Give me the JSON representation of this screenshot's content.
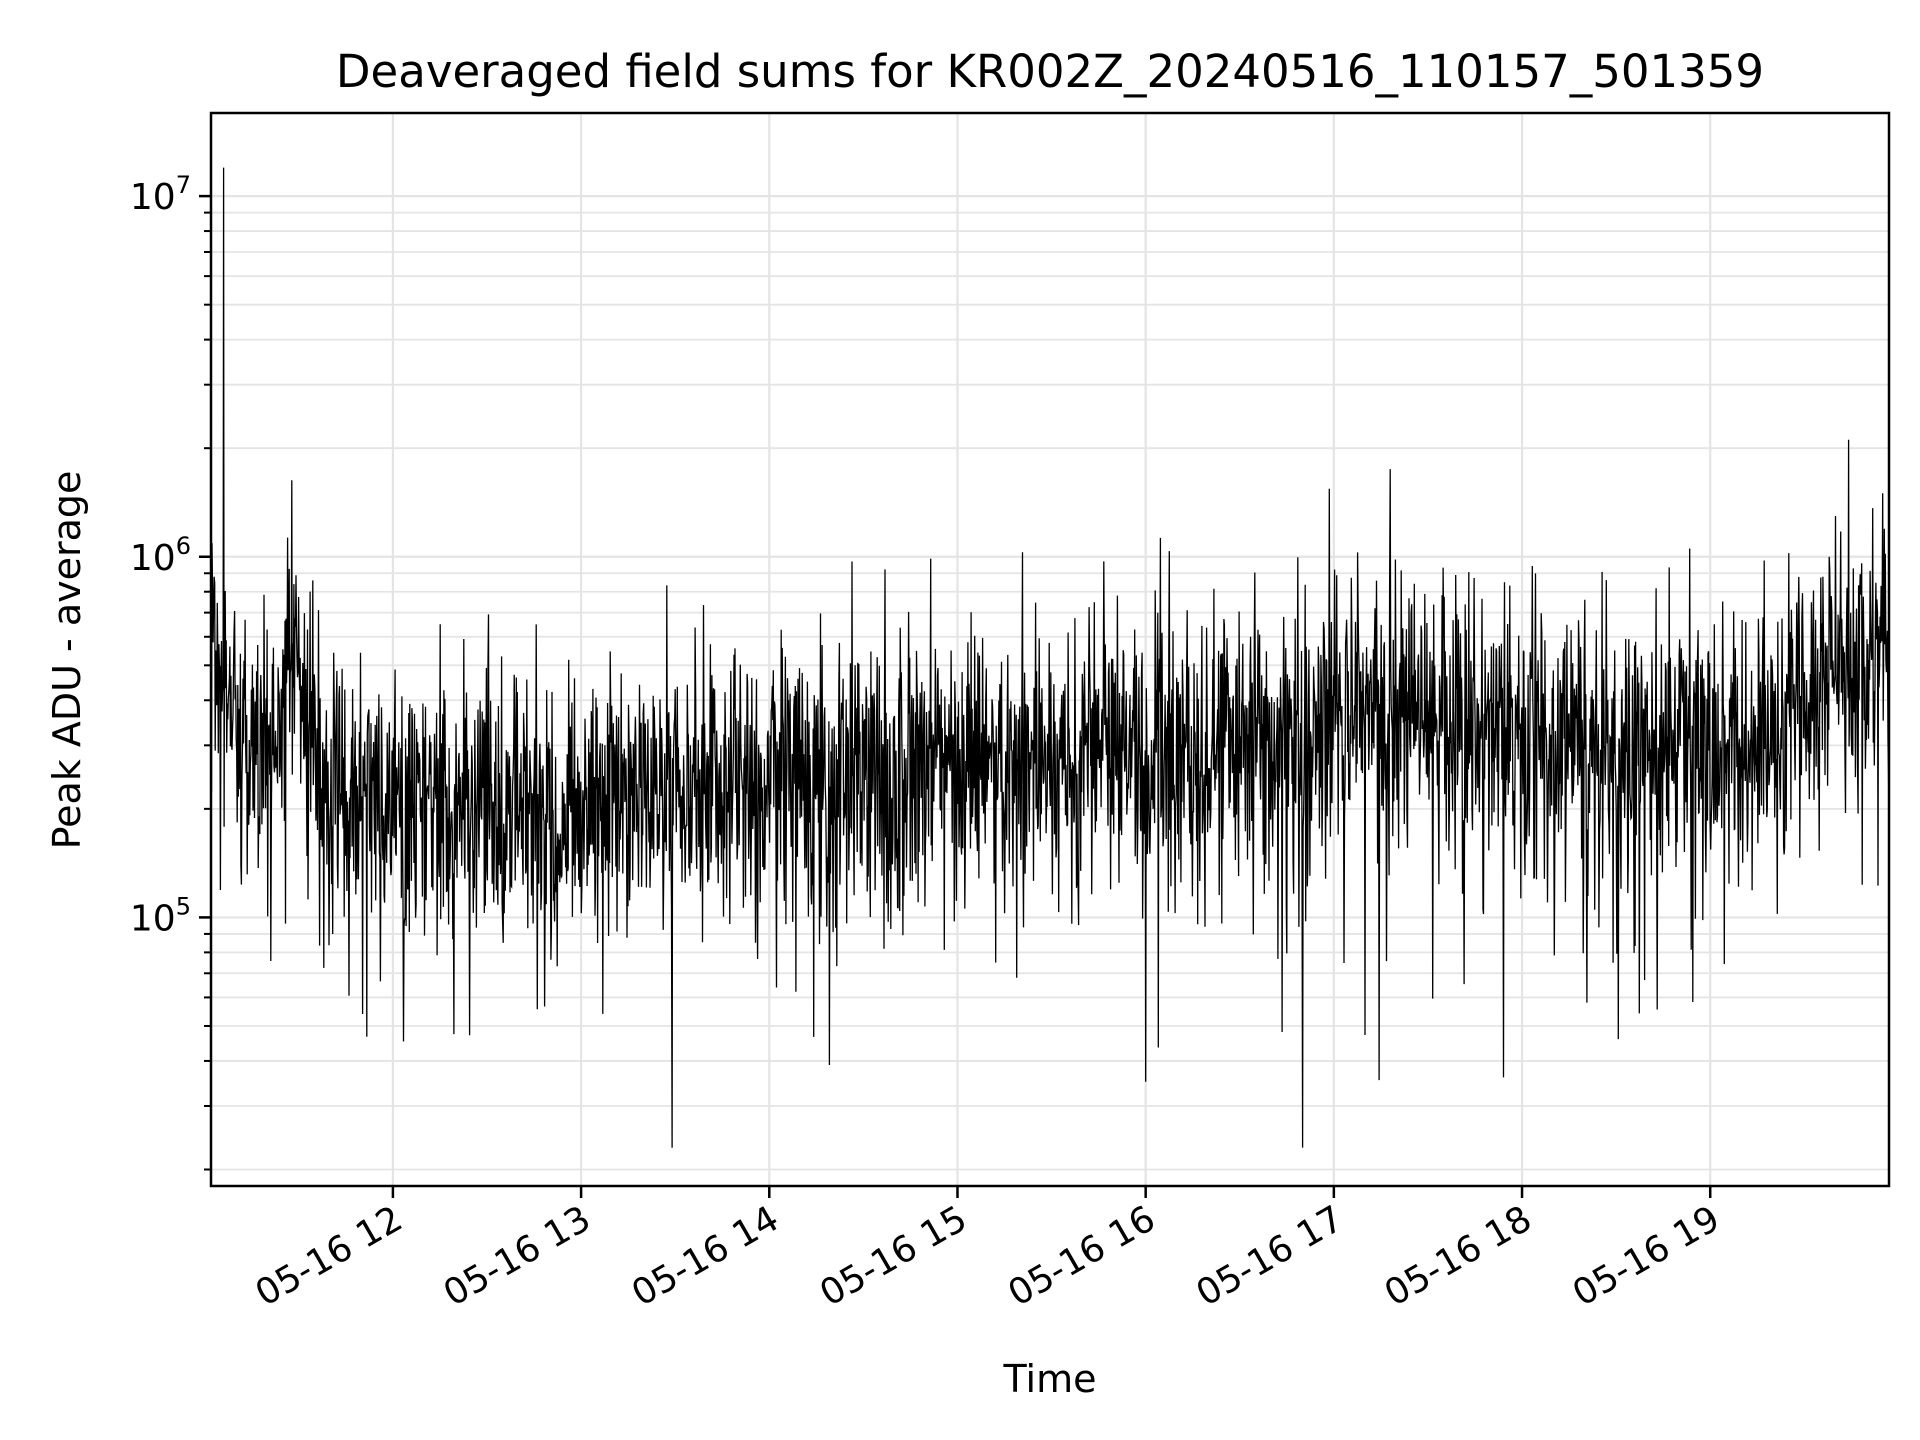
{
  "chart_data": {
    "type": "line",
    "title": "Deaveraged field sums for KR002Z_20240516_110157_501359",
    "xlabel": "Time",
    "ylabel": "Peak ADU - average",
    "yscale": "log",
    "ylim": [
      18000,
      17000000
    ],
    "xlim": [
      "2024-05-16 11:02",
      "2024-05-16 19:57"
    ],
    "grid": true,
    "legend": "none",
    "line_color": "#000000",
    "x_ticks": [
      {
        "value": "2024-05-16 12:00",
        "label": "05-16 12"
      },
      {
        "value": "2024-05-16 13:00",
        "label": "05-16 13"
      },
      {
        "value": "2024-05-16 14:00",
        "label": "05-16 14"
      },
      {
        "value": "2024-05-16 15:00",
        "label": "05-16 15"
      },
      {
        "value": "2024-05-16 16:00",
        "label": "05-16 16"
      },
      {
        "value": "2024-05-16 17:00",
        "label": "05-16 17"
      },
      {
        "value": "2024-05-16 18:00",
        "label": "05-16 18"
      },
      {
        "value": "2024-05-16 19:00",
        "label": "05-16 19"
      }
    ],
    "y_ticks": [
      {
        "value": 100000,
        "base": "10",
        "exp": "5"
      },
      {
        "value": 1000000,
        "base": "10",
        "exp": "6"
      },
      {
        "value": 10000000,
        "base": "10",
        "exp": "7"
      }
    ],
    "series": [
      {
        "x_start": "2024-05-16 11:02",
        "x_end": "2024-05-16 19:57",
        "sample_count": 3200,
        "trend": [
          [
            "2024-05-16 11:02",
            620000
          ],
          [
            "2024-05-16 11:10",
            340000
          ],
          [
            "2024-05-16 11:20",
            300000
          ],
          [
            "2024-05-16 11:28",
            560000
          ],
          [
            "2024-05-16 11:37",
            240000
          ],
          [
            "2024-05-16 12:00",
            200000
          ],
          [
            "2024-05-16 13:00",
            210000
          ],
          [
            "2024-05-16 14:00",
            230000
          ],
          [
            "2024-05-16 15:00",
            255000
          ],
          [
            "2024-05-16 16:00",
            285000
          ],
          [
            "2024-05-16 16:45",
            330000
          ],
          [
            "2024-05-16 17:00",
            380000
          ],
          [
            "2024-05-16 17:30",
            370000
          ],
          [
            "2024-05-16 18:00",
            320000
          ],
          [
            "2024-05-16 18:30",
            290000
          ],
          [
            "2024-05-16 19:10",
            290000
          ],
          [
            "2024-05-16 19:30",
            420000
          ],
          [
            "2024-05-16 19:45",
            520000
          ],
          [
            "2024-05-16 19:57",
            560000
          ]
        ],
        "notable_points": [
          [
            "2024-05-16 11:06",
            12000000
          ],
          [
            "2024-05-16 16:50",
            23000
          ],
          [
            "2024-05-16 16:00",
            35000
          ],
          [
            "2024-05-16 17:54",
            36000
          ],
          [
            "2024-05-16 17:18",
            1750000
          ],
          [
            "2024-05-16 19:55",
            1500000
          ]
        ]
      }
    ]
  }
}
